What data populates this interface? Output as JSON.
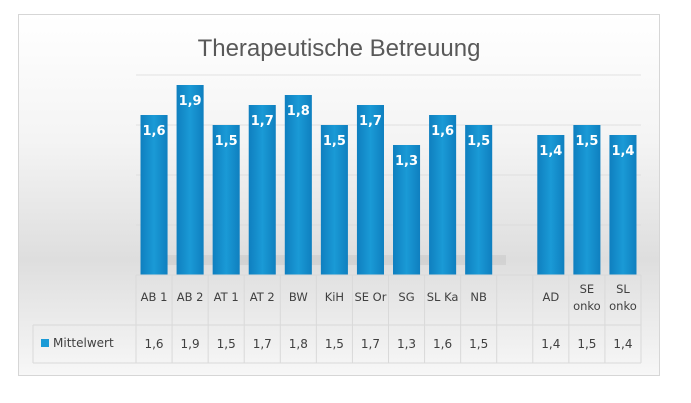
{
  "chart_data": {
    "type": "bar",
    "title": "Therapeutische Betreuung",
    "categories": [
      [
        "AB 1"
      ],
      [
        "AB 2"
      ],
      [
        "AT 1"
      ],
      [
        "AT 2"
      ],
      [
        "BW"
      ],
      [
        "KiH"
      ],
      [
        "SE Or"
      ],
      [
        "SG"
      ],
      [
        "SL Ka"
      ],
      [
        "NB"
      ],
      [
        ""
      ],
      [
        "AD"
      ],
      [
        "SE",
        "onko"
      ],
      [
        "SL",
        "onko"
      ]
    ],
    "series": [
      {
        "name": "Mittelwert",
        "values": [
          1.6,
          1.9,
          1.5,
          1.7,
          1.8,
          1.5,
          1.7,
          1.3,
          1.6,
          1.5,
          null,
          1.4,
          1.5,
          1.4
        ],
        "labels": [
          "1,6",
          "1,9",
          "1,5",
          "1,7",
          "1,8",
          "1,5",
          "1,7",
          "1,3",
          "1,6",
          "1,5",
          "",
          "1,4",
          "1,5",
          "1,4"
        ]
      }
    ],
    "ylim": [
      0,
      2
    ],
    "grid": true,
    "data_table": true,
    "colors": {
      "bar": "#1a9ad6",
      "bar_dark": "#0f7fbf",
      "grid": "#d9d9d9",
      "legend_key": "#1a9ad6"
    }
  }
}
